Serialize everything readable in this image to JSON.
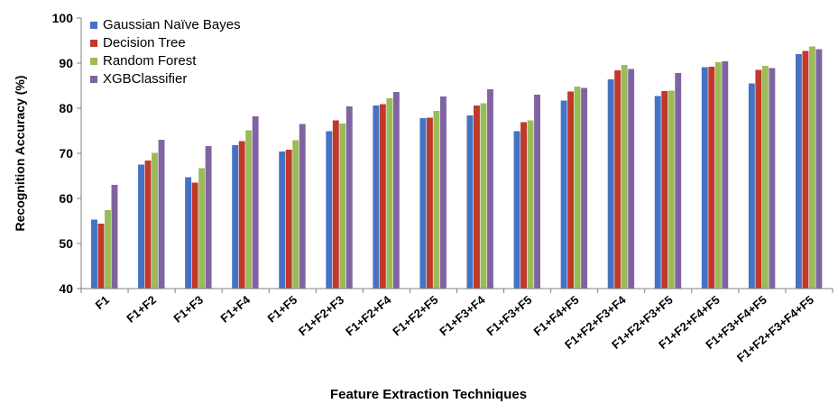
{
  "chart_data": {
    "type": "bar",
    "title": "",
    "xlabel": "Feature Extraction  Techniques",
    "ylabel": "Recognition Accuracy (%)",
    "ylim": [
      40,
      100
    ],
    "yticks": [
      "40",
      "50",
      "60",
      "70",
      "80",
      "90",
      "100"
    ],
    "grid": false,
    "legend_position": "top-left",
    "categories": [
      "F1",
      "F1+F2",
      "F1+F3",
      "F1+F4",
      "F1+F5",
      "F1+F2+F3",
      "F1+F2+F4",
      "F1+F2+F5",
      "F1+F3+F4",
      "F1+F3+F5",
      "F1+F4+F5",
      "F1+F2+F3+F4",
      "F1+F2+F3+F5",
      "F1+F2+F4+F5",
      "F1+F3+F4+F5",
      "F1+F2+F3+F4+F5"
    ],
    "series": [
      {
        "name": "Gaussian Naïve Bayes",
        "color": "#4472C4",
        "values": [
          55.3,
          67.5,
          64.7,
          71.8,
          70.4,
          74.9,
          80.6,
          77.8,
          78.4,
          74.9,
          81.7,
          86.4,
          82.7,
          89.1,
          85.5,
          92.0
        ]
      },
      {
        "name": "Decision Tree",
        "color": "#C0392B",
        "values": [
          54.4,
          68.4,
          63.5,
          72.7,
          70.8,
          77.3,
          80.9,
          77.9,
          80.6,
          76.9,
          83.7,
          88.4,
          83.8,
          89.2,
          88.5,
          92.7
        ]
      },
      {
        "name": "Random Forest",
        "color": "#9BBB59",
        "values": [
          57.4,
          70.1,
          66.7,
          75.1,
          72.9,
          76.6,
          82.2,
          79.4,
          81.1,
          77.3,
          84.8,
          89.6,
          83.9,
          90.2,
          89.4,
          93.7
        ]
      },
      {
        "name": "XGBClassifier",
        "color": "#8064A2",
        "values": [
          63.0,
          73.0,
          71.6,
          78.2,
          76.5,
          80.4,
          83.6,
          82.6,
          84.2,
          83.0,
          84.5,
          88.7,
          87.8,
          90.4,
          88.9,
          93.1
        ]
      }
    ]
  }
}
